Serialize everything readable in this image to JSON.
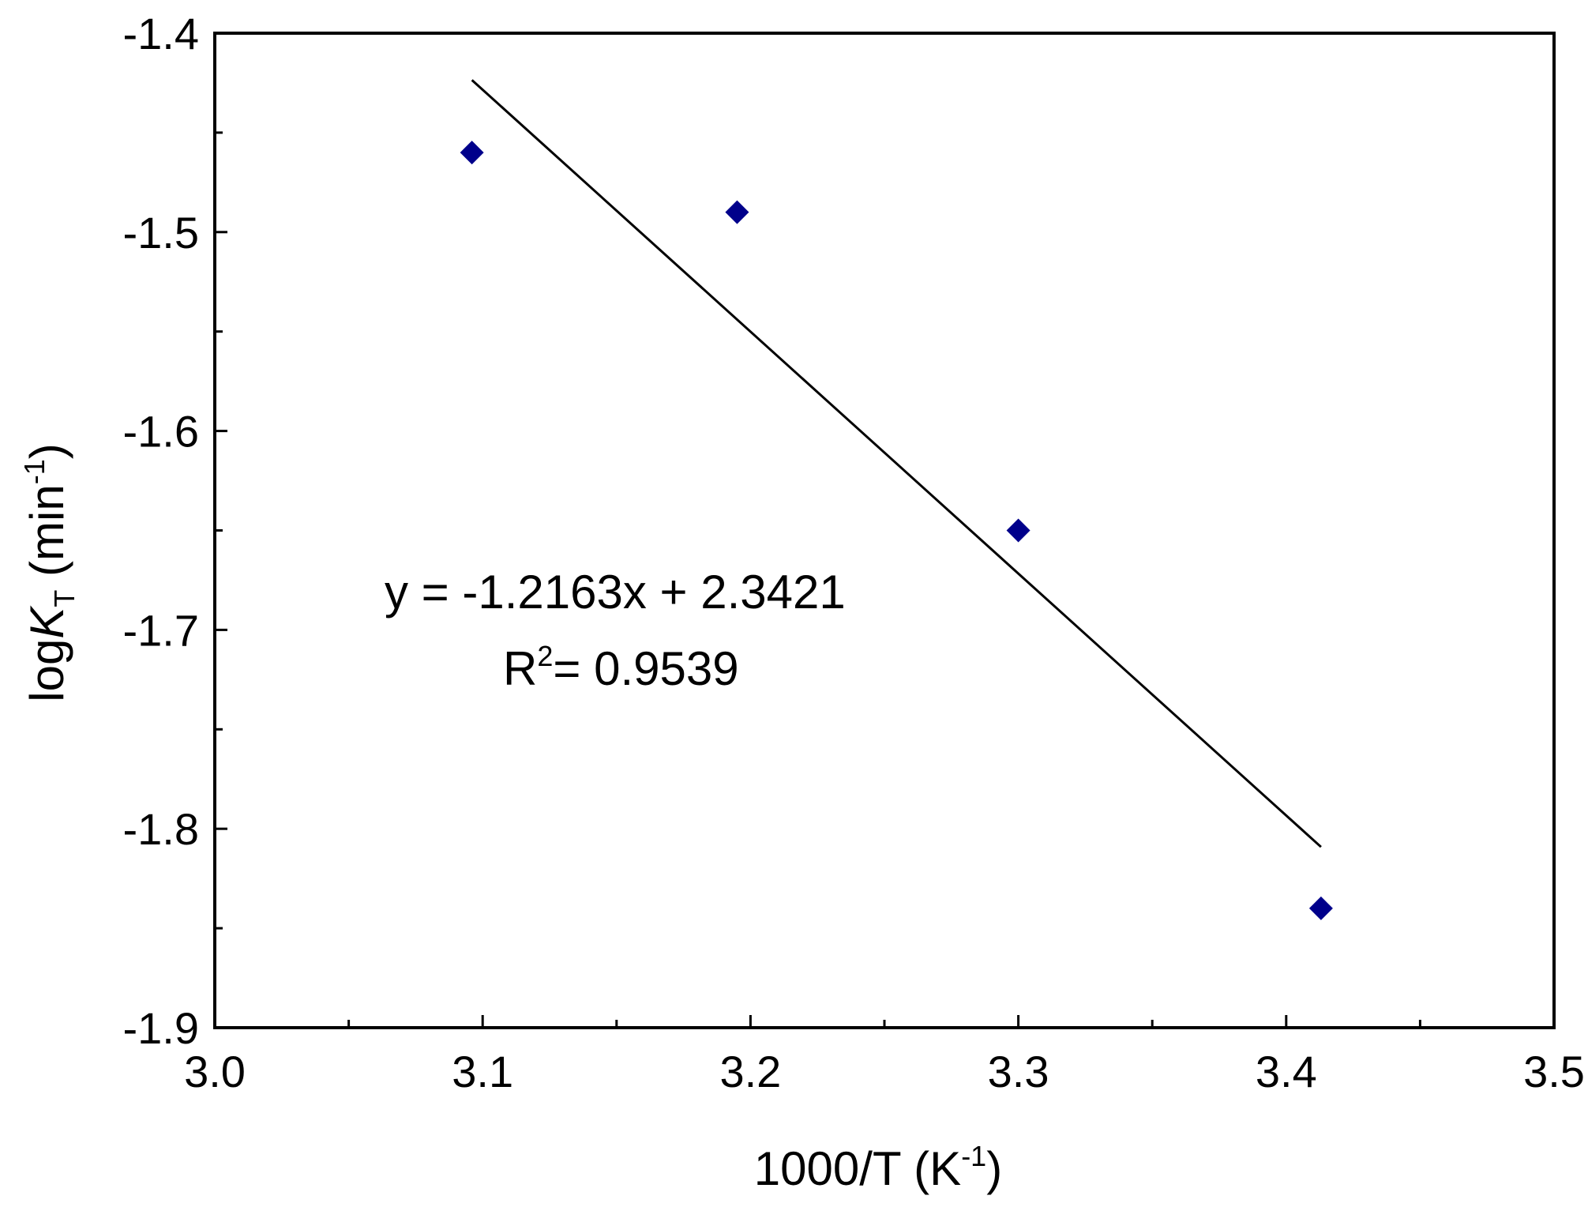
{
  "chart_data": {
    "type": "scatter",
    "title": "",
    "xlabel": {
      "main": "1000/T (K",
      "sup": "-1",
      "close": ")"
    },
    "ylabel": {
      "pre": "log",
      "italic": "K",
      "sub": "T",
      "mid": " (min",
      "sup": "-1",
      "close": ")"
    },
    "xlim": [
      3.0,
      3.5
    ],
    "ylim": [
      -1.9,
      -1.4
    ],
    "x_ticks": [
      3.0,
      3.1,
      3.2,
      3.3,
      3.4,
      3.5
    ],
    "x_tick_labels": [
      "3.0",
      "3.1",
      "3.2",
      "3.3",
      "3.4",
      "3.5"
    ],
    "x_minor_ticks": [
      3.05,
      3.15,
      3.25,
      3.35,
      3.45
    ],
    "y_ticks": [
      -1.4,
      -1.5,
      -1.6,
      -1.7,
      -1.8,
      -1.9
    ],
    "y_tick_labels": [
      "-1.4",
      "-1.5",
      "-1.6",
      "-1.7",
      "-1.8",
      "-1.9"
    ],
    "y_minor_ticks": [
      -1.45,
      -1.55,
      -1.65,
      -1.75,
      -1.85
    ],
    "grid": false,
    "series": [
      {
        "marker": "diamond",
        "color": "#00008B",
        "x": [
          3.096,
          3.195,
          3.3,
          3.413
        ],
        "y": [
          -1.46,
          -1.49,
          -1.65,
          -1.84
        ]
      }
    ],
    "fit_line": {
      "slope": -1.2163,
      "intercept": 2.3421,
      "x_range": [
        3.096,
        3.413
      ],
      "color": "#000000"
    },
    "annotation": {
      "equation": "y = -1.2163x + 2.3421",
      "r2_prefix": "R",
      "r2_sup": "2",
      "r2_value": "= 0.9539"
    }
  }
}
